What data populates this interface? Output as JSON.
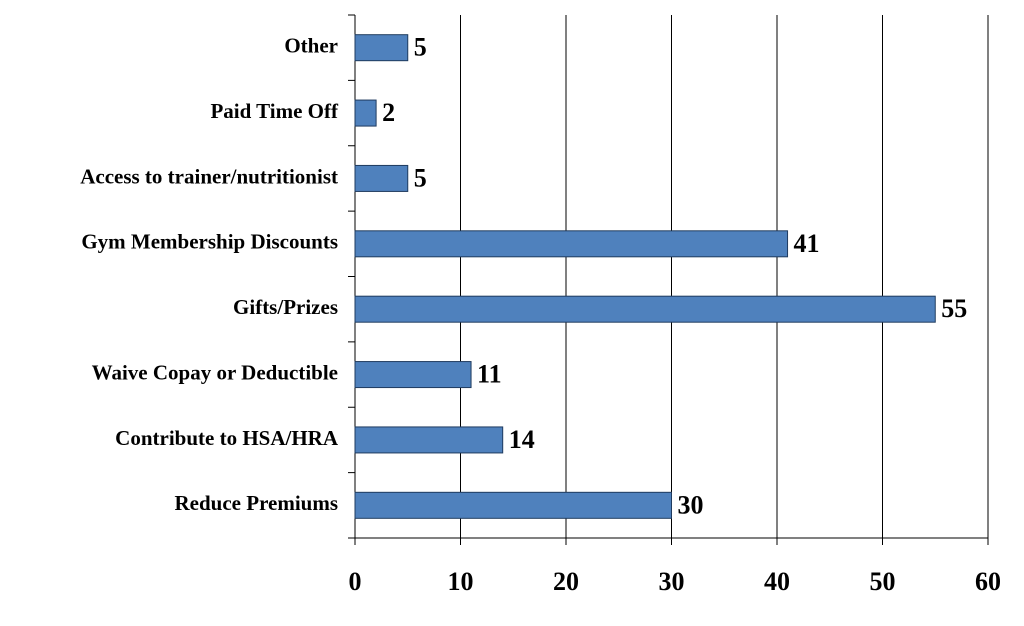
{
  "chart_data": {
    "type": "hbar",
    "categories": [
      "Other",
      "Paid Time Off",
      "Access to trainer/nutritionist",
      "Gym Membership Discounts",
      "Gifts/Prizes",
      "Waive Copay or Deductible",
      "Contribute to HSA/HRA",
      "Reduce Premiums"
    ],
    "values": [
      5,
      2,
      5,
      41,
      55,
      11,
      14,
      30
    ],
    "color": "#4f81bd",
    "xlim": [
      0,
      60
    ],
    "xticks": [
      0,
      10,
      20,
      30,
      40,
      50,
      60
    ],
    "grid": true
  }
}
